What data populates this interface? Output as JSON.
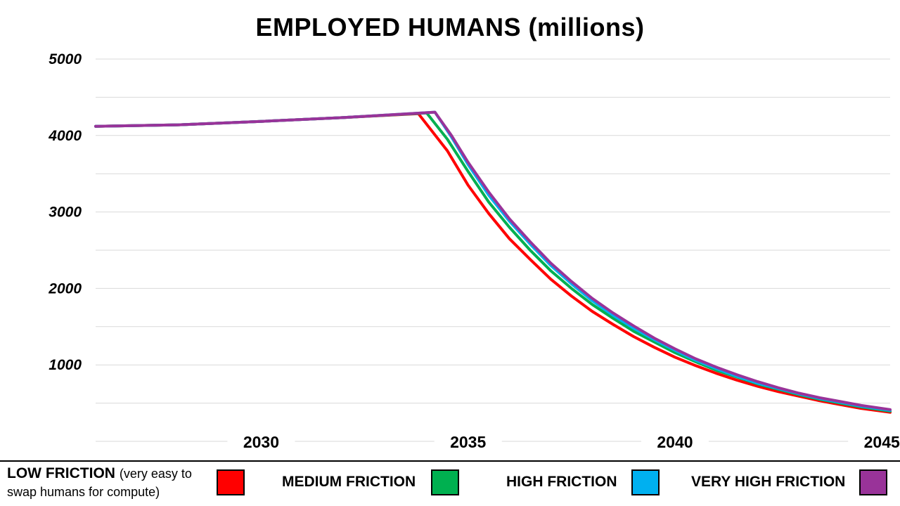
{
  "chart_data": {
    "type": "line",
    "title": "EMPLOYED HUMANS (millions)",
    "xlabel": "",
    "ylabel": "",
    "xlim": [
      2026,
      2045.2
    ],
    "ylim": [
      0,
      5000
    ],
    "x_ticks": [
      "2030",
      "2035",
      "2040",
      "2045"
    ],
    "x_tick_values": [
      2030,
      2035,
      2040,
      2045
    ],
    "y_ticks": [
      "1000",
      "2000",
      "3000",
      "4000",
      "5000"
    ],
    "y_tick_values": [
      1000,
      2000,
      3000,
      4000,
      5000
    ],
    "grid": true,
    "legend_position": "bottom",
    "series": [
      {
        "name": "LOW FRICTION",
        "name_note": "(very easy to swap humans for compute)",
        "color": "#ff0000",
        "points": [
          [
            2026,
            4120
          ],
          [
            2028,
            4140
          ],
          [
            2030,
            4185
          ],
          [
            2032,
            4235
          ],
          [
            2033.8,
            4285
          ],
          [
            2034.5,
            3800
          ],
          [
            2035,
            3350
          ],
          [
            2035.5,
            2980
          ],
          [
            2036,
            2650
          ],
          [
            2036.5,
            2380
          ],
          [
            2037,
            2120
          ],
          [
            2037.5,
            1900
          ],
          [
            2038,
            1700
          ],
          [
            2038.5,
            1530
          ],
          [
            2039,
            1370
          ],
          [
            2039.5,
            1230
          ],
          [
            2040,
            1100
          ],
          [
            2040.5,
            990
          ],
          [
            2041,
            890
          ],
          [
            2041.5,
            800
          ],
          [
            2042,
            720
          ],
          [
            2042.5,
            650
          ],
          [
            2043,
            590
          ],
          [
            2043.5,
            530
          ],
          [
            2044,
            480
          ],
          [
            2044.5,
            430
          ],
          [
            2045.2,
            380
          ]
        ]
      },
      {
        "name": "MEDIUM FRICTION",
        "color": "#00b050",
        "points": [
          [
            2026,
            4120
          ],
          [
            2028,
            4140
          ],
          [
            2030,
            4185
          ],
          [
            2032,
            4235
          ],
          [
            2034.0,
            4295
          ],
          [
            2034.5,
            3950
          ],
          [
            2035,
            3530
          ],
          [
            2035.5,
            3130
          ],
          [
            2036,
            2800
          ],
          [
            2036.5,
            2500
          ],
          [
            2037,
            2230
          ],
          [
            2037.5,
            2000
          ],
          [
            2038,
            1790
          ],
          [
            2038.5,
            1610
          ],
          [
            2039,
            1440
          ],
          [
            2039.5,
            1300
          ],
          [
            2040,
            1160
          ],
          [
            2040.5,
            1040
          ],
          [
            2041,
            930
          ],
          [
            2041.5,
            840
          ],
          [
            2042,
            750
          ],
          [
            2042.5,
            680
          ],
          [
            2043,
            610
          ],
          [
            2043.5,
            550
          ],
          [
            2044,
            500
          ],
          [
            2044.5,
            450
          ],
          [
            2045.2,
            395
          ]
        ]
      },
      {
        "name": "HIGH FRICTION",
        "color": "#00b0f0",
        "points": [
          [
            2026,
            4120
          ],
          [
            2028,
            4140
          ],
          [
            2030,
            4185
          ],
          [
            2032,
            4235
          ],
          [
            2034.2,
            4305
          ],
          [
            2034.6,
            3980
          ],
          [
            2035,
            3620
          ],
          [
            2035.5,
            3220
          ],
          [
            2036,
            2880
          ],
          [
            2036.5,
            2580
          ],
          [
            2037,
            2300
          ],
          [
            2037.5,
            2060
          ],
          [
            2038,
            1840
          ],
          [
            2038.5,
            1650
          ],
          [
            2039,
            1480
          ],
          [
            2039.5,
            1330
          ],
          [
            2040,
            1190
          ],
          [
            2040.5,
            1060
          ],
          [
            2041,
            950
          ],
          [
            2041.5,
            850
          ],
          [
            2042,
            760
          ],
          [
            2042.5,
            690
          ],
          [
            2043,
            620
          ],
          [
            2043.5,
            560
          ],
          [
            2044,
            510
          ],
          [
            2044.5,
            460
          ],
          [
            2045.2,
            405
          ]
        ]
      },
      {
        "name": "VERY HIGH FRICTION",
        "color": "#993399",
        "points": [
          [
            2026,
            4120
          ],
          [
            2028,
            4140
          ],
          [
            2030,
            4185
          ],
          [
            2032,
            4235
          ],
          [
            2034.2,
            4305
          ],
          [
            2034.6,
            4000
          ],
          [
            2035,
            3650
          ],
          [
            2035.5,
            3260
          ],
          [
            2036,
            2910
          ],
          [
            2036.5,
            2610
          ],
          [
            2037,
            2330
          ],
          [
            2037.5,
            2090
          ],
          [
            2038,
            1870
          ],
          [
            2038.5,
            1680
          ],
          [
            2039,
            1510
          ],
          [
            2039.5,
            1350
          ],
          [
            2040,
            1210
          ],
          [
            2040.5,
            1080
          ],
          [
            2041,
            970
          ],
          [
            2041.5,
            870
          ],
          [
            2042,
            780
          ],
          [
            2042.5,
            700
          ],
          [
            2043,
            630
          ],
          [
            2043.5,
            570
          ],
          [
            2044,
            520
          ],
          [
            2044.5,
            470
          ],
          [
            2045.2,
            415
          ]
        ]
      }
    ]
  },
  "legend": {
    "low_label": "LOW FRICTION",
    "low_sub": "(very easy to swap humans for compute)",
    "medium_label": "MEDIUM FRICTION",
    "high_label": "HIGH FRICTION",
    "very_high_label": "VERY HIGH FRICTION"
  }
}
